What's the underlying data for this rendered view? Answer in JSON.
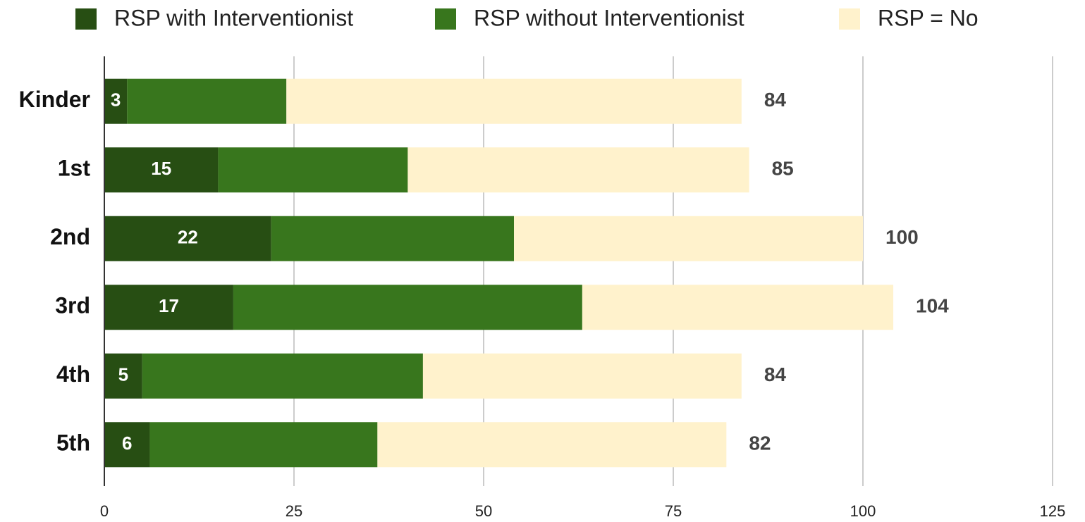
{
  "chart_data": {
    "type": "stacked_barh",
    "categories": [
      "Kinder",
      "1st",
      "2nd",
      "3rd",
      "4th",
      "5th"
    ],
    "series": [
      {
        "name": "RSP with Interventionist",
        "color": "#274e13",
        "values": [
          3,
          15,
          22,
          17,
          5,
          6
        ]
      },
      {
        "name": "RSP without Interventionist",
        "color": "#38761d",
        "values": [
          21,
          25,
          32,
          46,
          37,
          30
        ]
      },
      {
        "name": "RSP = No",
        "color": "#fff2cc",
        "values": [
          60,
          45,
          46,
          41,
          42,
          46
        ]
      }
    ],
    "totals": [
      84,
      85,
      100,
      104,
      84,
      82
    ],
    "xlim": [
      0,
      125
    ],
    "xticks": [
      0,
      25,
      50,
      75,
      100,
      125
    ],
    "grid": true,
    "legend": "top"
  }
}
